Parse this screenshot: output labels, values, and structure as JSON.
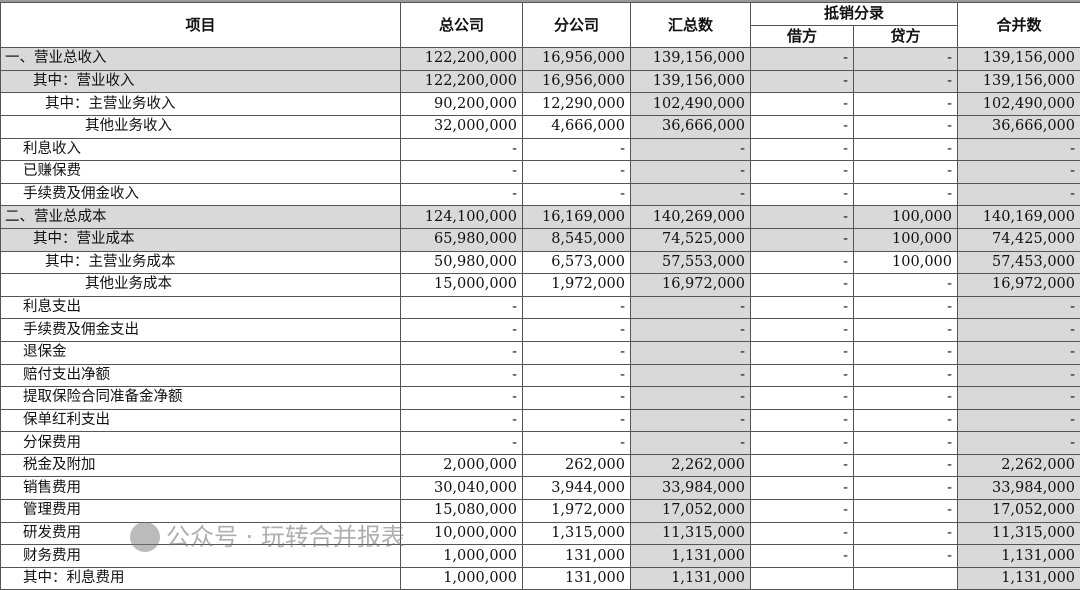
{
  "header": {
    "item": "项目",
    "hq": "总公司",
    "branch": "分公司",
    "sum": "汇总数",
    "elim": "抵销分录",
    "debit": "借方",
    "credit": "贷方",
    "consol": "合并数"
  },
  "colors": {
    "shade": "#d9d9d9",
    "border": "#555555"
  },
  "rows": [
    {
      "label": "一、营业总收入",
      "indent": 0,
      "shaded": true,
      "v": [
        "122,200,000",
        "16,956,000",
        "139,156,000",
        "-",
        "-",
        "139,156,000"
      ]
    },
    {
      "label": "其中：营业收入",
      "indent": 2,
      "shaded": true,
      "v": [
        "122,200,000",
        "16,956,000",
        "139,156,000",
        "-",
        "-",
        "139,156,000"
      ]
    },
    {
      "label": "其中：主营业务收入",
      "indent": 3,
      "shaded": false,
      "v": [
        "90,200,000",
        "12,290,000",
        "102,490,000",
        "-",
        "-",
        "102,490,000"
      ]
    },
    {
      "label": "其他业务收入",
      "indent": 4,
      "shaded": false,
      "v": [
        "32,000,000",
        "4,666,000",
        "36,666,000",
        "-",
        "-",
        "36,666,000"
      ]
    },
    {
      "label": "利息收入",
      "indent": 1,
      "shaded": false,
      "v": [
        "-",
        "-",
        "-",
        "-",
        "-",
        "-"
      ]
    },
    {
      "label": "已赚保费",
      "indent": 1,
      "shaded": false,
      "v": [
        "-",
        "-",
        "-",
        "-",
        "-",
        "-"
      ]
    },
    {
      "label": "手续费及佣金收入",
      "indent": 1,
      "shaded": false,
      "v": [
        "-",
        "-",
        "-",
        "-",
        "-",
        "-"
      ]
    },
    {
      "label": "二、营业总成本",
      "indent": 0,
      "shaded": true,
      "v": [
        "124,100,000",
        "16,169,000",
        "140,269,000",
        "-",
        "100,000",
        "140,169,000"
      ]
    },
    {
      "label": "其中：营业成本",
      "indent": 2,
      "shaded": true,
      "v": [
        "65,980,000",
        "8,545,000",
        "74,525,000",
        "-",
        "100,000",
        "74,425,000"
      ]
    },
    {
      "label": "其中：主营业务成本",
      "indent": 3,
      "shaded": false,
      "v": [
        "50,980,000",
        "6,573,000",
        "57,553,000",
        "-",
        "100,000",
        "57,453,000"
      ]
    },
    {
      "label": "其他业务成本",
      "indent": 4,
      "shaded": false,
      "v": [
        "15,000,000",
        "1,972,000",
        "16,972,000",
        "-",
        "-",
        "16,972,000"
      ]
    },
    {
      "label": "利息支出",
      "indent": 1,
      "shaded": false,
      "v": [
        "-",
        "-",
        "-",
        "-",
        "-",
        "-"
      ]
    },
    {
      "label": "手续费及佣金支出",
      "indent": 1,
      "shaded": false,
      "v": [
        "-",
        "-",
        "-",
        "-",
        "-",
        "-"
      ]
    },
    {
      "label": "退保金",
      "indent": 1,
      "shaded": false,
      "v": [
        "-",
        "-",
        "-",
        "-",
        "-",
        "-"
      ]
    },
    {
      "label": "赔付支出净额",
      "indent": 1,
      "shaded": false,
      "v": [
        "-",
        "-",
        "-",
        "-",
        "-",
        "-"
      ]
    },
    {
      "label": "提取保险合同准备金净额",
      "indent": 1,
      "shaded": false,
      "v": [
        "-",
        "-",
        "-",
        "-",
        "-",
        "-"
      ]
    },
    {
      "label": "保单红利支出",
      "indent": 1,
      "shaded": false,
      "v": [
        "-",
        "-",
        "-",
        "-",
        "-",
        "-"
      ]
    },
    {
      "label": "分保费用",
      "indent": 1,
      "shaded": false,
      "v": [
        "-",
        "-",
        "-",
        "-",
        "-",
        "-"
      ]
    },
    {
      "label": "税金及附加",
      "indent": 1,
      "shaded": false,
      "v": [
        "2,000,000",
        "262,000",
        "2,262,000",
        "-",
        "-",
        "2,262,000"
      ]
    },
    {
      "label": "销售费用",
      "indent": 1,
      "shaded": false,
      "v": [
        "30,040,000",
        "3,944,000",
        "33,984,000",
        "-",
        "-",
        "33,984,000"
      ]
    },
    {
      "label": "管理费用",
      "indent": 1,
      "shaded": false,
      "v": [
        "15,080,000",
        "1,972,000",
        "17,052,000",
        "-",
        "-",
        "17,052,000"
      ]
    },
    {
      "label": "研发费用",
      "indent": 1,
      "shaded": false,
      "v": [
        "10,000,000",
        "1,315,000",
        "11,315,000",
        "-",
        "-",
        "11,315,000"
      ]
    },
    {
      "label": "财务费用",
      "indent": 1,
      "shaded": false,
      "v": [
        "1,000,000",
        "131,000",
        "1,131,000",
        "-",
        "-",
        "1,131,000"
      ]
    },
    {
      "label": "其中：利息费用",
      "indent": 1,
      "shaded": false,
      "v": [
        "1,000,000",
        "131,000",
        "1,131,000",
        "",
        "",
        "1,131,000"
      ]
    }
  ],
  "watermark": "公众号 · 玩转合并报表"
}
